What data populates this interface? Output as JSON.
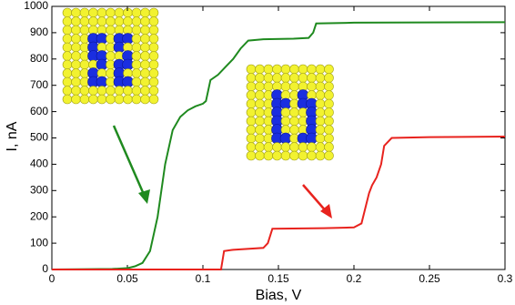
{
  "chart_data": {
    "type": "line",
    "xlabel": "Bias, V",
    "ylabel": "I, nA",
    "xlim": [
      0,
      0.3
    ],
    "ylim": [
      0,
      1000
    ],
    "xticks": [
      0,
      0.05,
      0.1,
      0.15,
      0.2,
      0.25,
      0.3
    ],
    "yticks": [
      0,
      100,
      200,
      300,
      400,
      500,
      600,
      700,
      800,
      900,
      1000
    ],
    "series": [
      {
        "color": "#1f8a1f",
        "x": [
          0,
          0.04,
          0.05,
          0.055,
          0.06,
          0.065,
          0.07,
          0.075,
          0.08,
          0.085,
          0.09,
          0.095,
          0.1,
          0.102,
          0.105,
          0.11,
          0.115,
          0.12,
          0.125,
          0.13,
          0.14,
          0.16,
          0.17,
          0.173,
          0.175,
          0.2,
          0.3
        ],
        "values": [
          0,
          2,
          5,
          12,
          25,
          70,
          200,
          400,
          530,
          580,
          605,
          620,
          630,
          640,
          720,
          740,
          770,
          800,
          840,
          870,
          875,
          877,
          880,
          900,
          935,
          938,
          940
        ]
      },
      {
        "color": "#e8231e",
        "x": [
          0,
          0.112,
          0.114,
          0.12,
          0.14,
          0.143,
          0.146,
          0.18,
          0.2,
          0.205,
          0.21,
          0.212,
          0.215,
          0.218,
          0.22,
          0.225,
          0.25,
          0.3
        ],
        "values": [
          0,
          0,
          70,
          75,
          82,
          100,
          155,
          157,
          160,
          175,
          290,
          320,
          350,
          400,
          470,
          500,
          503,
          505
        ]
      }
    ]
  }
}
